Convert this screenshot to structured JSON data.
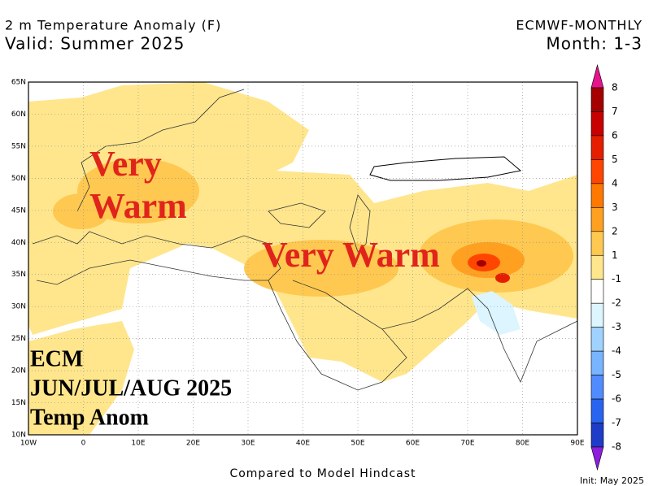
{
  "header": {
    "title": "2 m Temperature Anomaly (F)",
    "valid": "Valid: Summer 2025",
    "model": "ECMWF-MONTHLY",
    "month": "Month: 1-3"
  },
  "map": {
    "lat_labels": [
      "65N",
      "60N",
      "55N",
      "50N",
      "45N",
      "40N",
      "35N",
      "30N",
      "25N",
      "20N",
      "15N",
      "10N"
    ],
    "lon_labels": [
      "10W",
      "0",
      "10E",
      "20E",
      "30E",
      "40E",
      "50E",
      "60E",
      "70E",
      "80E",
      "90E"
    ]
  },
  "colorbar": {
    "labels": [
      8,
      7,
      6,
      5,
      4,
      3,
      2,
      1,
      -1,
      -2,
      -3,
      -4,
      -5,
      -6,
      -7,
      -8
    ]
  },
  "annotations": {
    "left_top": "Very",
    "left_bottom": "Warm",
    "center": "Very Warm",
    "ecm": "ECM",
    "period": "JUN/JUL/AUG 2025",
    "anom": "Temp Anom"
  },
  "footer": {
    "compared": "Compared to Model Hindcast",
    "init": "Init: May 2025"
  }
}
